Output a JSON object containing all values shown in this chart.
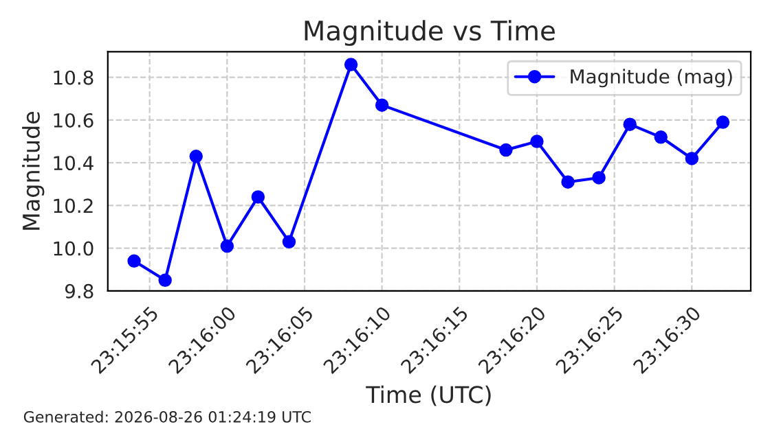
{
  "chart_data": {
    "type": "line",
    "title": "Magnitude vs Time",
    "xlabel": "Time (UTC)",
    "ylabel": "Magnitude",
    "x": [
      23.265,
      23.265556,
      23.266111,
      23.266667,
      23.267222,
      23.267778,
      23.268889,
      23.269444,
      23.271667,
      23.272222,
      23.272778,
      23.273333,
      23.273889,
      23.274444,
      23.275,
      23.275556
    ],
    "series": [
      {
        "name": "Magnitude (mag)",
        "color": "#0000ff",
        "values": [
          9.94,
          9.85,
          10.43,
          10.01,
          10.24,
          10.03,
          10.86,
          10.67,
          10.46,
          10.5,
          10.31,
          10.33,
          10.58,
          10.52,
          10.42,
          10.59
        ]
      }
    ],
    "xlim": [
      23.264528,
      23.276056
    ],
    "xticks": [
      {
        "value": 23.265278,
        "label": "23:15:55"
      },
      {
        "value": 23.266667,
        "label": "23:16:00"
      },
      {
        "value": 23.268056,
        "label": "23:16:05"
      },
      {
        "value": 23.269444,
        "label": "23:16:10"
      },
      {
        "value": 23.270833,
        "label": "23:16:15"
      },
      {
        "value": 23.272222,
        "label": "23:16:20"
      },
      {
        "value": 23.273611,
        "label": "23:16:25"
      },
      {
        "value": 23.275,
        "label": "23:16:30"
      }
    ],
    "ylim": [
      9.8,
      10.92
    ],
    "yticks": [
      9.8,
      {
        "value": 10,
        "label": "10.0"
      },
      10.2,
      10.4,
      10.6,
      10.8
    ],
    "grid": true,
    "legend": "top right",
    "marker": "circle",
    "line_style": "solid",
    "annotations": [
      "Generated: 2026-08-26 01:24:19 UTC"
    ]
  }
}
